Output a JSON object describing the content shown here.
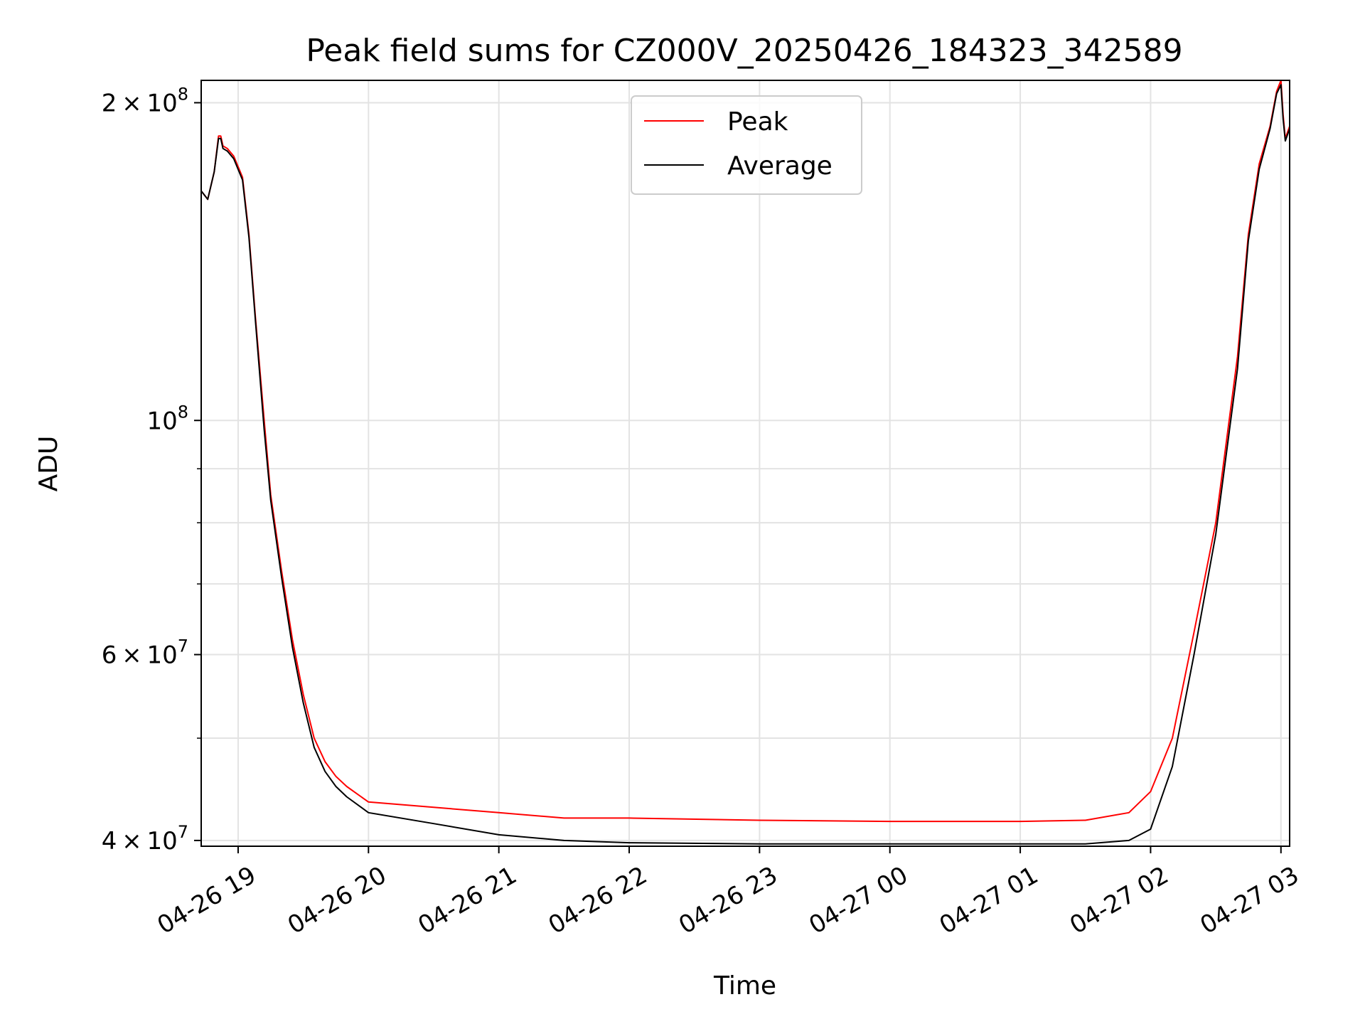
{
  "chart_data": {
    "type": "line",
    "title": "Peak field sums for CZ000V_20250426_184323_342589",
    "xlabel": "Time",
    "ylabel": "ADU",
    "yscale": "log",
    "grid": true,
    "legend_position": "top-center",
    "xlim": [
      "2025-04-26 18:43",
      "2025-04-27 03:04"
    ],
    "ylim": [
      39500000,
      210000000
    ],
    "x_ticks": [
      {
        "t": "2025-04-26 19:00",
        "label": "04-26 19"
      },
      {
        "t": "2025-04-26 20:00",
        "label": "04-26 20"
      },
      {
        "t": "2025-04-26 21:00",
        "label": "04-26 21"
      },
      {
        "t": "2025-04-26 22:00",
        "label": "04-26 22"
      },
      {
        "t": "2025-04-26 23:00",
        "label": "04-26 23"
      },
      {
        "t": "2025-04-27 00:00",
        "label": "04-27 00"
      },
      {
        "t": "2025-04-27 01:00",
        "label": "04-27 01"
      },
      {
        "t": "2025-04-27 02:00",
        "label": "04-27 02"
      },
      {
        "t": "2025-04-27 03:00",
        "label": "04-27 03"
      }
    ],
    "y_major_ticks": [
      {
        "value": 40000000,
        "mant": "4",
        "times": "×",
        "base": "10",
        "exp": "7"
      },
      {
        "value": 60000000,
        "mant": "6",
        "times": "×",
        "base": "10",
        "exp": "7"
      },
      {
        "value": 100000000,
        "mant": "",
        "times": "",
        "base": "10",
        "exp": "8"
      },
      {
        "value": 200000000,
        "mant": "2",
        "times": "×",
        "base": "10",
        "exp": "8"
      }
    ],
    "y_minor_ticks": [
      50000000,
      70000000,
      80000000,
      90000000
    ],
    "series": [
      {
        "name": "Peak",
        "color": "#ff0000",
        "x": [
          "2025-04-26 18:43",
          "2025-04-26 18:46",
          "2025-04-26 18:49",
          "2025-04-26 18:51",
          "2025-04-26 18:52",
          "2025-04-26 18:53",
          "2025-04-26 18:55",
          "2025-04-26 18:58",
          "2025-04-26 19:02",
          "2025-04-26 19:05",
          "2025-04-26 19:08",
          "2025-04-26 19:12",
          "2025-04-26 19:15",
          "2025-04-26 19:20",
          "2025-04-26 19:25",
          "2025-04-26 19:30",
          "2025-04-26 19:35",
          "2025-04-26 19:40",
          "2025-04-26 19:45",
          "2025-04-26 19:50",
          "2025-04-26 20:00",
          "2025-04-26 20:30",
          "2025-04-26 21:00",
          "2025-04-26 21:30",
          "2025-04-26 22:00",
          "2025-04-26 23:00",
          "2025-04-27 00:00",
          "2025-04-27 01:00",
          "2025-04-27 01:30",
          "2025-04-27 01:50",
          "2025-04-27 02:00",
          "2025-04-27 02:10",
          "2025-04-27 02:20",
          "2025-04-27 02:30",
          "2025-04-27 02:40",
          "2025-04-27 02:45",
          "2025-04-27 02:50",
          "2025-04-27 02:55",
          "2025-04-27 02:58",
          "2025-04-27 03:00",
          "2025-04-27 03:01",
          "2025-04-27 03:02",
          "2025-04-27 03:04"
        ],
        "values": [
          165000000,
          162000000,
          172000000,
          186000000,
          186000000,
          182000000,
          181000000,
          178000000,
          170000000,
          150000000,
          125000000,
          100000000,
          85000000,
          72000000,
          62000000,
          55000000,
          50000000,
          47500000,
          46000000,
          45000000,
          43500000,
          43000000,
          42500000,
          42000000,
          42000000,
          41800000,
          41700000,
          41700000,
          41800000,
          42500000,
          44500000,
          50000000,
          63000000,
          80000000,
          115000000,
          150000000,
          175000000,
          190000000,
          205000000,
          210000000,
          195000000,
          185000000,
          190000000
        ]
      },
      {
        "name": "Average",
        "color": "#000000",
        "x": [
          "2025-04-26 18:43",
          "2025-04-26 18:46",
          "2025-04-26 18:49",
          "2025-04-26 18:51",
          "2025-04-26 18:52",
          "2025-04-26 18:53",
          "2025-04-26 18:55",
          "2025-04-26 18:58",
          "2025-04-26 19:02",
          "2025-04-26 19:05",
          "2025-04-26 19:08",
          "2025-04-26 19:12",
          "2025-04-26 19:15",
          "2025-04-26 19:20",
          "2025-04-26 19:25",
          "2025-04-26 19:30",
          "2025-04-26 19:35",
          "2025-04-26 19:40",
          "2025-04-26 19:45",
          "2025-04-26 19:50",
          "2025-04-26 20:00",
          "2025-04-26 20:30",
          "2025-04-26 21:00",
          "2025-04-26 21:30",
          "2025-04-26 22:00",
          "2025-04-26 23:00",
          "2025-04-27 00:00",
          "2025-04-27 01:00",
          "2025-04-27 01:30",
          "2025-04-27 01:50",
          "2025-04-27 02:00",
          "2025-04-27 02:10",
          "2025-04-27 02:20",
          "2025-04-27 02:30",
          "2025-04-27 02:40",
          "2025-04-27 02:45",
          "2025-04-27 02:50",
          "2025-04-27 02:55",
          "2025-04-27 02:58",
          "2025-04-27 03:00",
          "2025-04-27 03:01",
          "2025-04-27 03:02",
          "2025-04-27 03:04"
        ],
        "values": [
          165000000,
          162000000,
          172000000,
          185000000,
          185000000,
          181000000,
          180000000,
          177000000,
          169000000,
          149000000,
          124000000,
          98000000,
          84000000,
          71000000,
          61000000,
          54000000,
          49000000,
          46500000,
          45000000,
          44000000,
          42500000,
          41500000,
          40500000,
          40000000,
          39800000,
          39700000,
          39700000,
          39700000,
          39700000,
          40000000,
          41000000,
          47000000,
          60000000,
          78000000,
          112000000,
          148000000,
          173000000,
          189000000,
          204000000,
          208000000,
          193000000,
          184000000,
          189000000
        ]
      }
    ]
  }
}
